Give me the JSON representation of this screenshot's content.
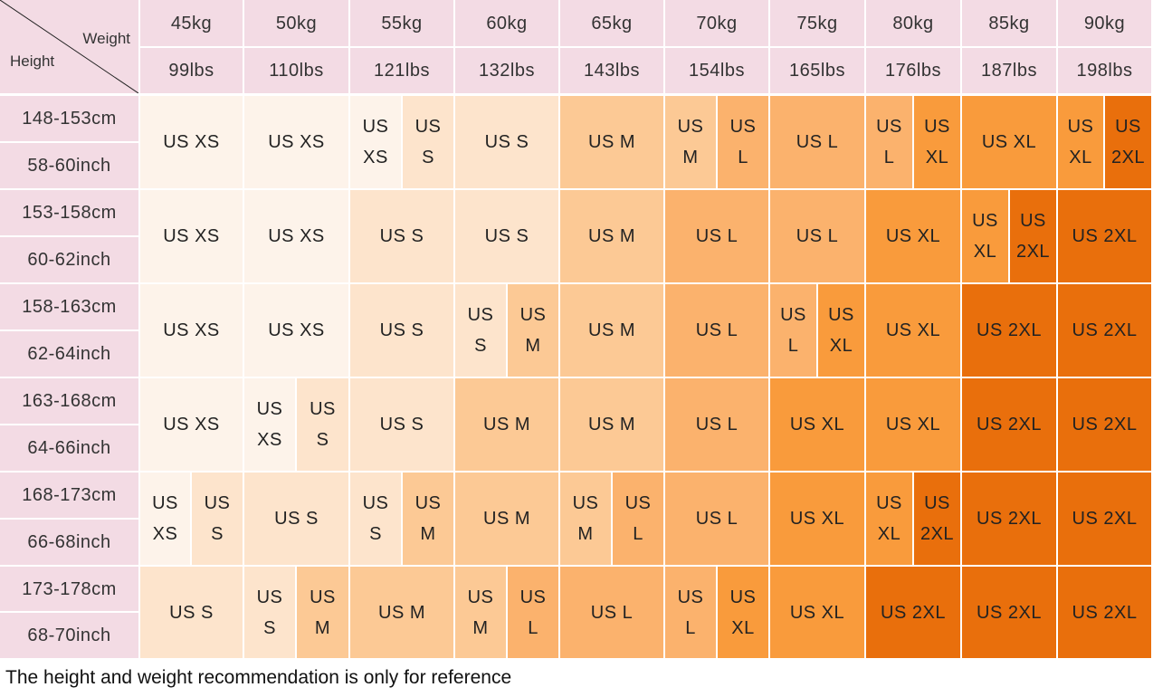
{
  "table": {
    "corner": {
      "weight_label": "Weight",
      "height_label": "Height"
    },
    "weights_kg": [
      "45kg",
      "50kg",
      "55kg",
      "60kg",
      "65kg",
      "70kg",
      "75kg",
      "80kg",
      "85kg",
      "90kg"
    ],
    "weights_lbs": [
      "99lbs",
      "110lbs",
      "121lbs",
      "132lbs",
      "143lbs",
      "154lbs",
      "165lbs",
      "176lbs",
      "187lbs",
      "198lbs"
    ],
    "rows": [
      {
        "cm": "148-153cm",
        "inch": "58-60inch",
        "cells": [
          [
            "US XS"
          ],
          [
            "US XS"
          ],
          [
            "US XS",
            "US S"
          ],
          [
            "US S"
          ],
          [
            "US M"
          ],
          [
            "US M",
            "US L"
          ],
          [
            "US L"
          ],
          [
            "US L",
            "US XL"
          ],
          [
            "US XL"
          ],
          [
            "US XL",
            "US 2XL"
          ]
        ]
      },
      {
        "cm": "153-158cm",
        "inch": "60-62inch",
        "cells": [
          [
            "US XS"
          ],
          [
            "US XS"
          ],
          [
            "US S"
          ],
          [
            "US S"
          ],
          [
            "US M"
          ],
          [
            "US L"
          ],
          [
            "US L"
          ],
          [
            "US XL"
          ],
          [
            "US XL",
            "US 2XL"
          ],
          [
            "US 2XL"
          ]
        ]
      },
      {
        "cm": "158-163cm",
        "inch": "62-64inch",
        "cells": [
          [
            "US XS"
          ],
          [
            "US XS"
          ],
          [
            "US S"
          ],
          [
            "US S",
            "US M"
          ],
          [
            "US M"
          ],
          [
            "US L"
          ],
          [
            "US L",
            "US XL"
          ],
          [
            "US XL"
          ],
          [
            "US 2XL"
          ],
          [
            "US 2XL"
          ]
        ]
      },
      {
        "cm": "163-168cm",
        "inch": "64-66inch",
        "cells": [
          [
            "US XS"
          ],
          [
            "US XS",
            "US S"
          ],
          [
            "US S"
          ],
          [
            "US M"
          ],
          [
            "US M"
          ],
          [
            "US L"
          ],
          [
            "US XL"
          ],
          [
            "US XL"
          ],
          [
            "US 2XL"
          ],
          [
            "US 2XL"
          ]
        ]
      },
      {
        "cm": "168-173cm",
        "inch": "66-68inch",
        "cells": [
          [
            "US XS",
            "US S"
          ],
          [
            "US S"
          ],
          [
            "US S",
            "US M"
          ],
          [
            "US M"
          ],
          [
            "US M",
            "US L"
          ],
          [
            "US L"
          ],
          [
            "US XL"
          ],
          [
            "US XL",
            "US 2XL"
          ],
          [
            "US 2XL"
          ],
          [
            "US 2XL"
          ]
        ]
      },
      {
        "cm": "173-178cm",
        "inch": "68-70inch",
        "cells": [
          [
            "US S"
          ],
          [
            "US S",
            "US M"
          ],
          [
            "US M"
          ],
          [
            "US M",
            "US L"
          ],
          [
            "US L"
          ],
          [
            "US L",
            "US XL"
          ],
          [
            "US XL"
          ],
          [
            "US 2XL"
          ],
          [
            "US 2XL"
          ],
          [
            "US 2XL"
          ]
        ]
      }
    ]
  },
  "size_colors": {
    "US XS": "#fdf3ea",
    "US S": "#fde4cc",
    "US M": "#fcc995",
    "US L": "#fbb26d",
    "US XL": "#f99b3c",
    "US 2XL": "#e96f0c"
  },
  "header_color": "#f3dbe4",
  "note": "The height and weight recommendation is only for reference"
}
